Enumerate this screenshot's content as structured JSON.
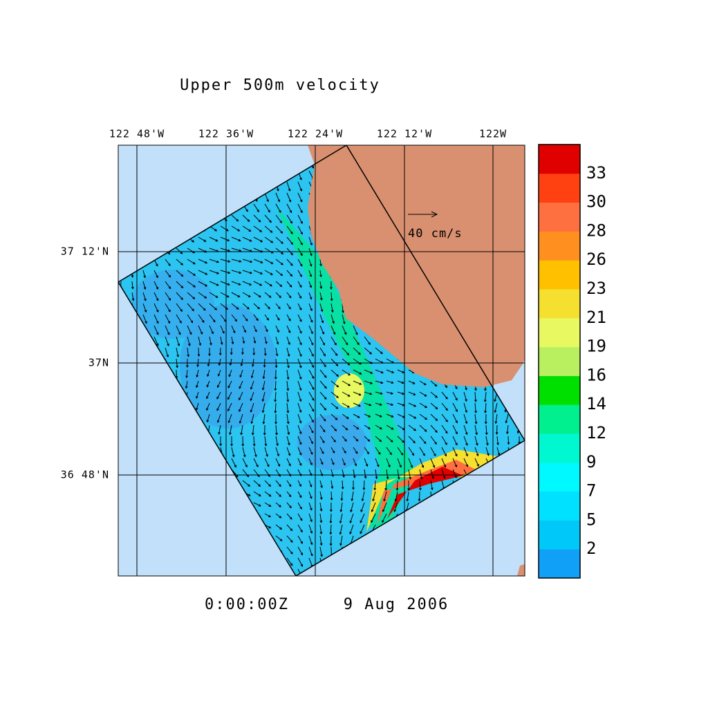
{
  "title": "Upper 500m velocity",
  "lon_labels": [
    "122 48'W",
    "122 36'W",
    "122 24'W",
    "122 12'W",
    "122W"
  ],
  "lat_labels": [
    "37 12'N",
    "37N",
    "36 48'N"
  ],
  "colorbar": {
    "labels": [
      2,
      5,
      7,
      9,
      12,
      14,
      16,
      19,
      21,
      23,
      26,
      28,
      30,
      33
    ],
    "colors": [
      "#10a0f8",
      "#00c8f8",
      "#00e0ff",
      "#00f8ff",
      "#00f8d0",
      "#00f090",
      "#00e000",
      "#b8f060",
      "#e8f860",
      "#f5e030",
      "#ffc000",
      "#ff9020",
      "#ff7040",
      "#ff4010",
      "#e00000"
    ]
  },
  "scale_label": "40 cm/s",
  "time": "0:00:00Z",
  "date": "9 Aug 2006"
}
